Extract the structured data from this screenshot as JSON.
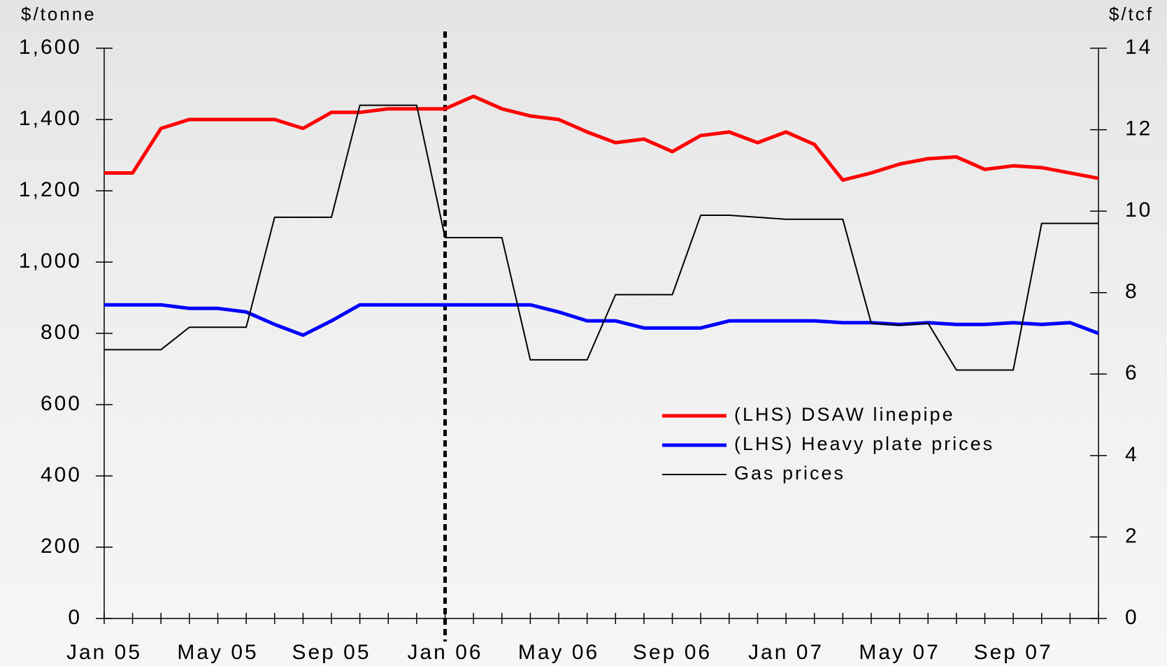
{
  "chart_data": {
    "type": "line",
    "y_label": "$/tonne",
    "y2_label": "$/tcf",
    "categories": [
      "Jan 05",
      null,
      null,
      null,
      "May 05",
      null,
      null,
      null,
      "Sep 05",
      null,
      null,
      null,
      "Jan 06",
      null,
      null,
      null,
      "May 06",
      null,
      null,
      null,
      "Sep 06",
      null,
      null,
      null,
      "Jan 07",
      null,
      null,
      null,
      "May 07",
      null,
      null,
      null,
      "Sep 07",
      null,
      null,
      null
    ],
    "series": [
      {
        "name": "(LHS) DSAW linepipe",
        "color": "#ff0000",
        "width": 5,
        "values": [
          1250,
          1250,
          1375,
          1400,
          1400,
          1400,
          1400,
          1375,
          1420,
          1420,
          1430,
          1430,
          1430,
          1465,
          1430,
          1410,
          1400,
          1365,
          1335,
          1345,
          1310,
          1355,
          1365,
          1335,
          1365,
          1330,
          1230,
          1250,
          1275,
          1290,
          1295,
          1260,
          1270,
          1265,
          1250,
          1235
        ]
      },
      {
        "name": "(LHS) Heavy plate prices",
        "color": "#0000ff",
        "width": 5,
        "values": [
          880,
          880,
          880,
          870,
          870,
          860,
          825,
          795,
          835,
          880,
          880,
          880,
          880,
          880,
          880,
          880,
          860,
          835,
          835,
          815,
          815,
          815,
          835,
          835,
          835,
          835,
          830,
          830,
          825,
          830,
          825,
          825,
          830,
          825,
          830,
          800
        ]
      },
      {
        "name": "Gas prices",
        "color": "#000000",
        "width": 2,
        "axis": "y2",
        "values": [
          6.6,
          6.6,
          6.6,
          7.15,
          7.15,
          7.15,
          9.85,
          9.85,
          9.85,
          12.6,
          12.6,
          12.6,
          9.35,
          9.35,
          9.35,
          6.35,
          6.35,
          6.35,
          7.95,
          7.95,
          7.95,
          9.9,
          9.9,
          9.85,
          9.8,
          9.8,
          9.8,
          7.25,
          7.2,
          7.25,
          6.1,
          6.1,
          6.1,
          9.7,
          9.7,
          9.7
        ]
      }
    ],
    "ylim": [
      0,
      1600
    ],
    "yticks": [
      0,
      200,
      400,
      600,
      800,
      {
        "value": 1000,
        "label": "1,000"
      },
      {
        "value": 1200,
        "label": "1,200"
      },
      {
        "value": 1400,
        "label": "1,400"
      },
      {
        "value": 1600,
        "label": "1,600"
      }
    ],
    "y2lim": [
      0,
      14
    ],
    "y2ticks": [
      0,
      2,
      4,
      6,
      8,
      10,
      12,
      14
    ],
    "vline": "Jan 06",
    "legend": "center-right"
  }
}
